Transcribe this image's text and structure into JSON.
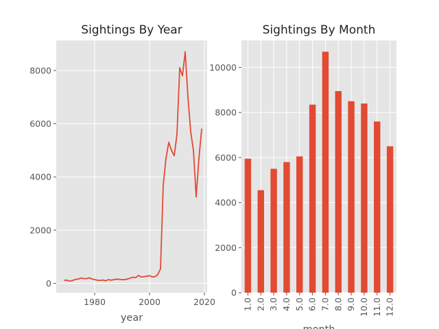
{
  "chart_data": [
    {
      "type": "line",
      "title": "Sightings By Year",
      "xlabel": "year",
      "ylabel": "",
      "xlim": [
        1966,
        2021
      ],
      "ylim": [
        -350,
        9130
      ],
      "xticks": [
        "1980",
        "2000",
        "2020"
      ],
      "yticks": [
        "0",
        "2000",
        "4000",
        "6000",
        "8000"
      ],
      "grid": true,
      "color": "#E24A33",
      "x": [
        1969,
        1970,
        1971,
        1972,
        1973,
        1974,
        1975,
        1976,
        1977,
        1978,
        1979,
        1980,
        1981,
        1982,
        1983,
        1984,
        1985,
        1986,
        1987,
        1988,
        1989,
        1990,
        1991,
        1992,
        1993,
        1994,
        1995,
        1996,
        1997,
        1998,
        1999,
        2000,
        2001,
        2002,
        2003,
        2004,
        2005,
        2006,
        2007,
        2008,
        2009,
        2010,
        2011,
        2012,
        2013,
        2014,
        2015,
        2016,
        2017,
        2018,
        2019
      ],
      "y": [
        120,
        115,
        85,
        110,
        150,
        160,
        200,
        180,
        175,
        210,
        165,
        140,
        120,
        110,
        125,
        95,
        140,
        120,
        140,
        160,
        150,
        140,
        145,
        160,
        200,
        230,
        220,
        300,
        240,
        250,
        270,
        290,
        240,
        250,
        330,
        550,
        3700,
        4700,
        5300,
        5000,
        4800,
        5600,
        8100,
        7800,
        8700,
        7000,
        5700,
        5000,
        3250,
        4700,
        5800
      ]
    },
    {
      "type": "bar",
      "title": "Sightings By Month",
      "xlabel": "month",
      "ylabel": "",
      "ylim": [
        0,
        11200
      ],
      "yticks": [
        "0",
        "2000",
        "4000",
        "6000",
        "8000",
        "10000"
      ],
      "grid": true,
      "color": "#E24A33",
      "categories": [
        "1.0",
        "2.0",
        "3.0",
        "4.0",
        "5.0",
        "6.0",
        "7.0",
        "8.0",
        "9.0",
        "10.0",
        "11.0",
        "12.0"
      ],
      "values": [
        5950,
        4550,
        5500,
        5800,
        6050,
        8350,
        10700,
        8950,
        8500,
        8400,
        7600,
        6500
      ]
    }
  ]
}
